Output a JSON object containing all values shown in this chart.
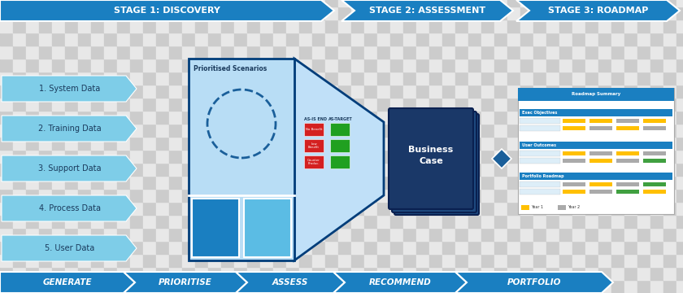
{
  "bg_checker_light": "#e8e8e8",
  "bg_checker_dark": "#cccccc",
  "checker_size": 16,
  "header_color": "#1a7fc1",
  "header_text_color": "#ffffff",
  "footer_color": "#1a7fc1",
  "footer_text_color": "#ffffff",
  "stage_labels": [
    "STAGE 1: DISCOVERY",
    "STAGE 2: ASSESSMENT",
    "STAGE 3: ROADMAP"
  ],
  "footer_labels": [
    "GENERATE",
    "PRIORITISE",
    "ASSESS",
    "RECOMMEND",
    "PORTFOLIO"
  ],
  "data_items": [
    "1. System Data",
    "2. Training Data",
    "3. Support Data",
    "4. Process Data",
    "5. User Data"
  ],
  "data_arrow_color": "#7ecde8",
  "dark_blue": "#003d7a",
  "medium_blue": "#1a7fc1",
  "light_blue": "#a8d8f0",
  "panel_fill": "#b8ddf5",
  "diamond_color": "#1a5f9a",
  "bc_dark": "#1a3a6a",
  "bc_mid": "#2a5a8a",
  "figw": 8.4,
  "figh": 3.6,
  "dpi": 100
}
